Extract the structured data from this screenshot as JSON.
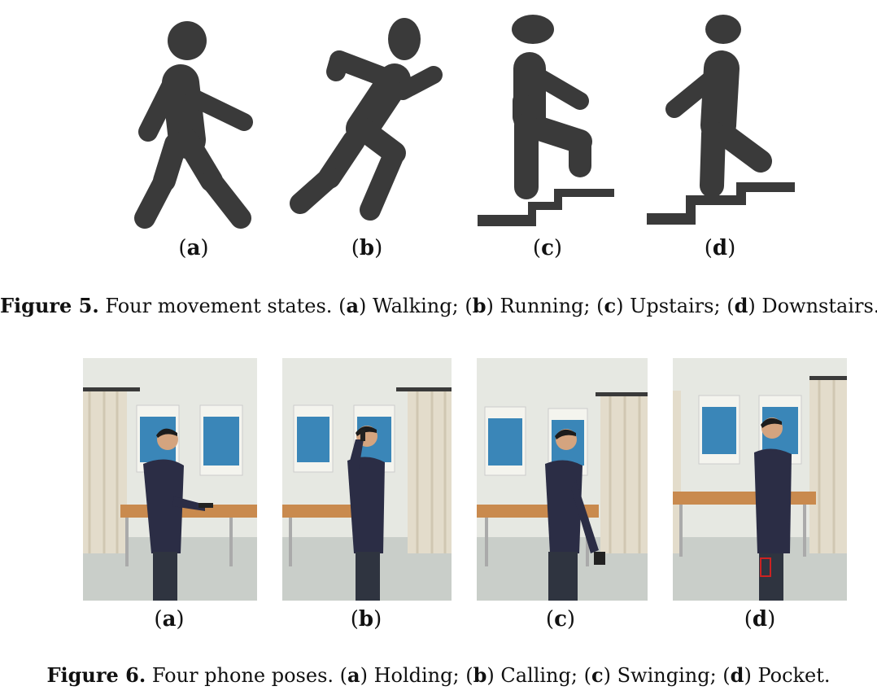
{
  "figure5": {
    "panels": [
      {
        "letter": "a",
        "state": "walking"
      },
      {
        "letter": "b",
        "state": "running"
      },
      {
        "letter": "c",
        "state": "upstairs"
      },
      {
        "letter": "d",
        "state": "downstairs"
      }
    ],
    "caption": {
      "label": "Figure 5.",
      "text": "Four movement states.",
      "items": [
        {
          "letter": "a",
          "text": "Walking;"
        },
        {
          "letter": "b",
          "text": "Running;"
        },
        {
          "letter": "c",
          "text": "Upstairs;"
        },
        {
          "letter": "d",
          "text": "Downstairs."
        }
      ]
    }
  },
  "figure6": {
    "panels": [
      {
        "letter": "a",
        "pose": "holding"
      },
      {
        "letter": "b",
        "pose": "calling"
      },
      {
        "letter": "c",
        "pose": "swinging"
      },
      {
        "letter": "d",
        "pose": "pocket"
      }
    ],
    "caption": {
      "label": "Figure 6.",
      "text": "Four phone poses.",
      "items": [
        {
          "letter": "a",
          "text": "Holding;"
        },
        {
          "letter": "b",
          "text": "Calling;"
        },
        {
          "letter": "c",
          "text": "Swinging;"
        },
        {
          "letter": "d",
          "text": "Pocket."
        }
      ]
    }
  },
  "colors": {
    "icon": "#3a3a3a",
    "wall": "#e6e8e2",
    "floor": "#c9cec9",
    "desk": "#c98a4e",
    "curtain": "#e3dccb",
    "sweater": "#2b2d45",
    "trousers": "#2f3440",
    "skin": "#d4a47f",
    "hair": "#1c1c1c",
    "poster": "#3a86b8"
  }
}
